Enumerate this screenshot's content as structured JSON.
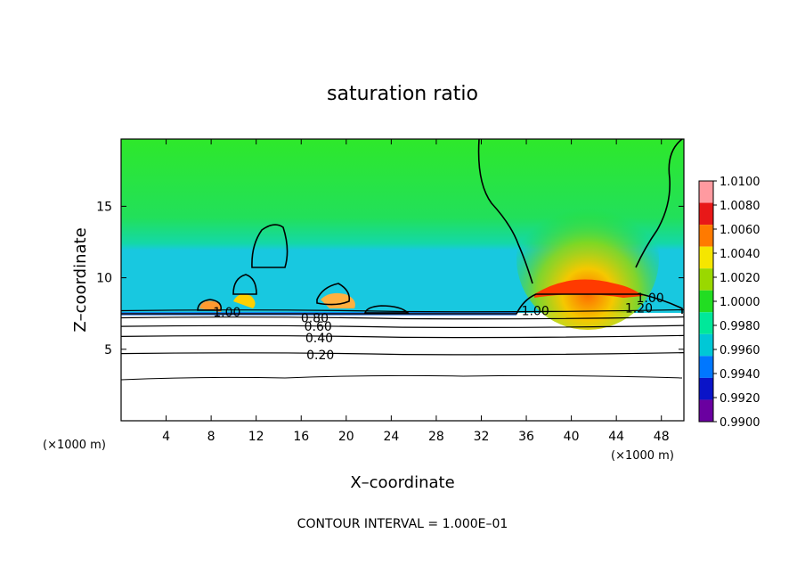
{
  "chart_data": {
    "type": "heatmap",
    "title": "saturation ratio",
    "xlabel": "X–coordinate",
    "ylabel": "Z–coordinate",
    "x_unit": "(×1000 m)",
    "y_unit": "(×1000 m)",
    "xlim": [
      0,
      50
    ],
    "ylim": [
      0,
      19.7
    ],
    "x_ticks": [
      4,
      8,
      12,
      16,
      20,
      24,
      28,
      32,
      36,
      40,
      44,
      48
    ],
    "y_ticks": [
      5,
      10,
      15
    ],
    "footer": "CONTOUR INTERVAL = 1.000E–01",
    "colorbar": {
      "labels": [
        "1.0100",
        "1.0080",
        "1.0060",
        "1.0040",
        "1.0020",
        "1.0000",
        "0.9980",
        "0.9960",
        "0.9940",
        "0.9920",
        "0.9900"
      ],
      "colors": [
        "#ff9aa0",
        "#e81818",
        "#ff7a00",
        "#f5e600",
        "#9ad800",
        "#22dd22",
        "#00e89a",
        "#00c8d6",
        "#0077ff",
        "#0a14c8",
        "#6a00a0"
      ]
    },
    "contour_labels": [
      {
        "text": "1.00",
        "x": 9.4,
        "z": 7.6
      },
      {
        "text": "0.80",
        "x": 17.2,
        "z": 7.2
      },
      {
        "text": "0.60",
        "x": 17.5,
        "z": 6.6
      },
      {
        "text": "0.40",
        "x": 17.6,
        "z": 5.8
      },
      {
        "text": "0.20",
        "x": 17.7,
        "z": 4.6
      },
      {
        "text": "1.00",
        "x": 36.8,
        "z": 7.7
      },
      {
        "text": "1.00",
        "x": 47.0,
        "z": 8.6
      },
      {
        "text": "1.20",
        "x": 46.0,
        "z": 7.9
      }
    ],
    "contour_levels": [
      {
        "level": 0.2,
        "z": 4.7
      },
      {
        "level": 0.4,
        "z": 5.9
      },
      {
        "level": 0.6,
        "z": 6.6
      },
      {
        "level": 0.8,
        "z": 7.2
      },
      {
        "level": 1.0,
        "z": 7.7
      }
    ]
  }
}
